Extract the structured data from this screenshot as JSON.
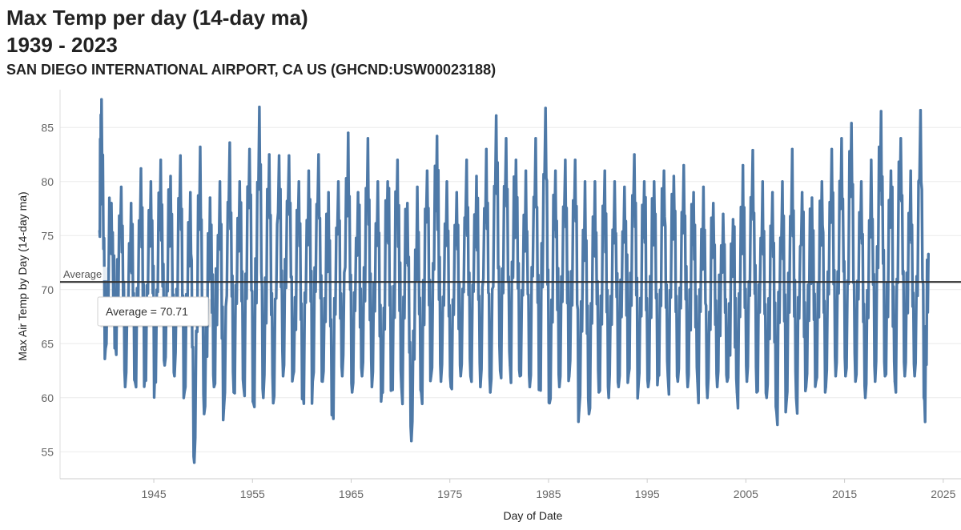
{
  "header": {
    "title_line1": "Max Temp per day (14-day ma)",
    "title_line2": "1939 - 2023",
    "subtitle": "SAN DIEGO INTERNATIONAL AIRPORT, CA US (GHCND:USW00023188)"
  },
  "chart_data": {
    "type": "line",
    "xlabel": "Day of Date",
    "ylabel": "Max Air Temp by Day (14-day ma)",
    "xlim": [
      1935.5,
      2026.8
    ],
    "ylim": [
      52.5,
      88.5
    ],
    "x_ticks": [
      "1945",
      "1955",
      "1965",
      "1975",
      "1985",
      "1995",
      "2005",
      "2015",
      "2025"
    ],
    "y_ticks": [
      "55",
      "60",
      "65",
      "70",
      "75",
      "80",
      "85"
    ],
    "grid": true,
    "series": [
      {
        "color": "#4e79a7",
        "x_start": 1939.5,
        "x_end": 2023.5,
        "annual_peaks": [
          [
            1939.7,
            87.6
          ],
          [
            1940.7,
            78.0
          ],
          [
            1941.7,
            79.5
          ],
          [
            1942.7,
            78.0
          ],
          [
            1943.7,
            81.2
          ],
          [
            1944.7,
            80.0
          ],
          [
            1945.7,
            82.0
          ],
          [
            1946.7,
            80.5
          ],
          [
            1947.7,
            82.4
          ],
          [
            1948.7,
            79.0
          ],
          [
            1949.7,
            83.2
          ],
          [
            1950.7,
            78.5
          ],
          [
            1951.7,
            80.0
          ],
          [
            1952.7,
            83.6
          ],
          [
            1953.7,
            80.0
          ],
          [
            1954.7,
            83.0
          ],
          [
            1955.7,
            86.9
          ],
          [
            1956.7,
            82.5
          ],
          [
            1957.7,
            82.4
          ],
          [
            1958.7,
            82.4
          ],
          [
            1959.7,
            80.0
          ],
          [
            1960.7,
            81.0
          ],
          [
            1961.7,
            82.5
          ],
          [
            1962.7,
            79.0
          ],
          [
            1963.7,
            80.0
          ],
          [
            1964.7,
            84.5
          ],
          [
            1965.7,
            79.0
          ],
          [
            1966.7,
            84.0
          ],
          [
            1967.7,
            80.0
          ],
          [
            1968.7,
            80.0
          ],
          [
            1969.7,
            82.0
          ],
          [
            1970.7,
            78.0
          ],
          [
            1971.7,
            79.5
          ],
          [
            1972.7,
            81.0
          ],
          [
            1973.7,
            84.2
          ],
          [
            1974.7,
            80.0
          ],
          [
            1975.7,
            79.0
          ],
          [
            1976.7,
            82.0
          ],
          [
            1977.7,
            80.5
          ],
          [
            1978.7,
            83.0
          ],
          [
            1979.7,
            86.1
          ],
          [
            1980.7,
            84.0
          ],
          [
            1981.7,
            82.0
          ],
          [
            1982.7,
            81.0
          ],
          [
            1983.7,
            84.0
          ],
          [
            1984.7,
            86.8
          ],
          [
            1985.7,
            81.0
          ],
          [
            1986.7,
            82.0
          ],
          [
            1987.7,
            82.0
          ],
          [
            1988.7,
            80.0
          ],
          [
            1989.7,
            80.0
          ],
          [
            1990.7,
            81.0
          ],
          [
            1991.7,
            80.0
          ],
          [
            1992.7,
            79.5
          ],
          [
            1993.7,
            82.5
          ],
          [
            1994.7,
            80.0
          ],
          [
            1995.7,
            80.0
          ],
          [
            1996.7,
            81.0
          ],
          [
            1997.7,
            80.5
          ],
          [
            1998.7,
            81.5
          ],
          [
            1999.7,
            79.0
          ],
          [
            2000.7,
            79.5
          ],
          [
            2001.7,
            78.0
          ],
          [
            2002.7,
            77.0
          ],
          [
            2003.7,
            76.5
          ],
          [
            2004.7,
            81.5
          ],
          [
            2005.7,
            82.9
          ],
          [
            2006.7,
            80.0
          ],
          [
            2007.7,
            79.0
          ],
          [
            2008.7,
            80.0
          ],
          [
            2009.7,
            83.0
          ],
          [
            2010.7,
            79.0
          ],
          [
            2011.7,
            78.5
          ],
          [
            2012.7,
            80.0
          ],
          [
            2013.7,
            83.0
          ],
          [
            2014.7,
            84.0
          ],
          [
            2015.7,
            85.4
          ],
          [
            2016.7,
            80.0
          ],
          [
            2017.7,
            82.0
          ],
          [
            2018.7,
            86.5
          ],
          [
            2019.7,
            81.0
          ],
          [
            2020.7,
            84.0
          ],
          [
            2021.7,
            81.0
          ],
          [
            2022.7,
            86.6
          ],
          [
            2023.5,
            73.3
          ]
        ],
        "annual_troughs": [
          [
            1940.1,
            64.5
          ],
          [
            1941.1,
            65.0
          ],
          [
            1942.1,
            61.0
          ],
          [
            1943.1,
            61.5
          ],
          [
            1944.1,
            62.0
          ],
          [
            1945.1,
            62.0
          ],
          [
            1946.1,
            63.0
          ],
          [
            1947.1,
            62.0
          ],
          [
            1948.1,
            60.5
          ],
          [
            1949.1,
            54.0
          ],
          [
            1950.1,
            58.5
          ],
          [
            1951.1,
            61.0
          ],
          [
            1952.1,
            59.0
          ],
          [
            1953.1,
            60.5
          ],
          [
            1954.1,
            61.0
          ],
          [
            1955.1,
            59.5
          ],
          [
            1956.1,
            60.0
          ],
          [
            1957.1,
            59.5
          ],
          [
            1958.1,
            62.0
          ],
          [
            1959.1,
            62.0
          ],
          [
            1960.1,
            60.5
          ],
          [
            1961.1,
            61.5
          ],
          [
            1962.1,
            61.5
          ],
          [
            1963.1,
            59.0
          ],
          [
            1964.1,
            62.0
          ],
          [
            1965.1,
            60.5
          ],
          [
            1966.1,
            62.0
          ],
          [
            1967.1,
            61.0
          ],
          [
            1968.1,
            60.5
          ],
          [
            1969.1,
            61.5
          ],
          [
            1970.1,
            61.0
          ],
          [
            1971.1,
            56.0
          ],
          [
            1972.1,
            60.5
          ],
          [
            1973.1,
            62.0
          ],
          [
            1974.1,
            61.5
          ],
          [
            1975.1,
            61.0
          ],
          [
            1976.1,
            62.0
          ],
          [
            1977.1,
            62.0
          ],
          [
            1978.1,
            61.0
          ],
          [
            1979.1,
            60.5
          ],
          [
            1980.1,
            62.5
          ],
          [
            1981.1,
            63.0
          ],
          [
            1982.1,
            62.0
          ],
          [
            1983.1,
            61.0
          ],
          [
            1984.1,
            62.0
          ],
          [
            1985.1,
            59.5
          ],
          [
            1986.1,
            61.0
          ],
          [
            1987.1,
            62.0
          ],
          [
            1988.1,
            58.8
          ],
          [
            1989.1,
            58.5
          ],
          [
            1990.1,
            60.5
          ],
          [
            1991.1,
            60.0
          ],
          [
            1992.1,
            61.0
          ],
          [
            1993.1,
            62.0
          ],
          [
            1994.1,
            61.0
          ],
          [
            1995.1,
            61.0
          ],
          [
            1996.1,
            62.0
          ],
          [
            1997.1,
            62.0
          ],
          [
            1998.1,
            61.5
          ],
          [
            1999.1,
            61.0
          ],
          [
            2000.1,
            61.5
          ],
          [
            2001.1,
            60.0
          ],
          [
            2002.1,
            61.0
          ],
          [
            2003.1,
            61.5
          ],
          [
            2004.1,
            60.5
          ],
          [
            2005.1,
            61.5
          ],
          [
            2006.1,
            60.5
          ],
          [
            2007.1,
            60.0
          ],
          [
            2008.1,
            58.7
          ],
          [
            2009.1,
            59.5
          ],
          [
            2010.1,
            60.0
          ],
          [
            2011.1,
            61.0
          ],
          [
            2012.1,
            61.5
          ],
          [
            2013.1,
            61.0
          ],
          [
            2014.1,
            62.0
          ],
          [
            2015.1,
            62.0
          ],
          [
            2016.1,
            61.5
          ],
          [
            2017.1,
            60.0
          ],
          [
            2018.1,
            61.5
          ],
          [
            2019.1,
            62.0
          ],
          [
            2020.1,
            61.5
          ],
          [
            2021.1,
            62.0
          ],
          [
            2022.1,
            62.0
          ],
          [
            2023.1,
            59.8
          ]
        ]
      }
    ],
    "reference_line": {
      "label": "Average",
      "value": 70.71,
      "color": "#333333",
      "tooltip": "Average = 70.71"
    }
  }
}
